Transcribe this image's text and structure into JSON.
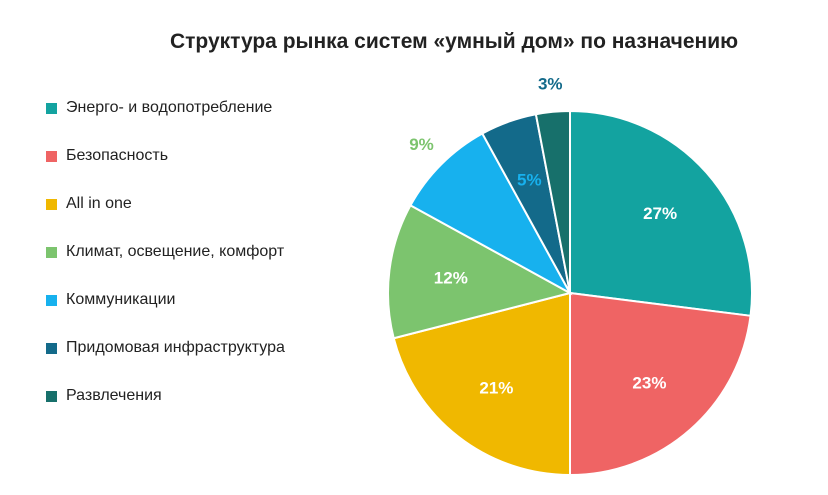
{
  "chart_data": {
    "type": "pie",
    "title": "Структура рынка систем «умный дом» по назначению",
    "legend_position": "left",
    "slices": [
      {
        "name": "Энерго- и водопотребление",
        "value": 27,
        "label": "27%",
        "color": "#13a3a0",
        "label_color": "#ffffff",
        "label_placement": "inside"
      },
      {
        "name": "Безопасность",
        "value": 23,
        "label": "23%",
        "color": "#ef6464",
        "label_color": "#ffffff",
        "label_placement": "inside"
      },
      {
        "name": "All in one",
        "value": 21,
        "label": "21%",
        "color": "#f0b800",
        "label_color": "#ffffff",
        "label_placement": "inside"
      },
      {
        "name": "Климат, освещение, комфорт",
        "value": 12,
        "label": "12%",
        "color": "#7cc46e",
        "label_color": "#ffffff",
        "label_placement": "inside"
      },
      {
        "name": "Коммуникации",
        "value": 9,
        "label": "9%",
        "color": "#17b1ee",
        "label_color": "#7cc46e",
        "label_placement": "outside"
      },
      {
        "name": "Придомовая инфраструктура",
        "value": 5,
        "label": "5%",
        "color": "#136a8a",
        "label_color": "#17b1ee",
        "label_placement": "inside"
      },
      {
        "name": "Развлечения",
        "value": 3,
        "label": "3%",
        "color": "#17706b",
        "label_color": "#136a8a",
        "label_placement": "outside"
      }
    ]
  }
}
